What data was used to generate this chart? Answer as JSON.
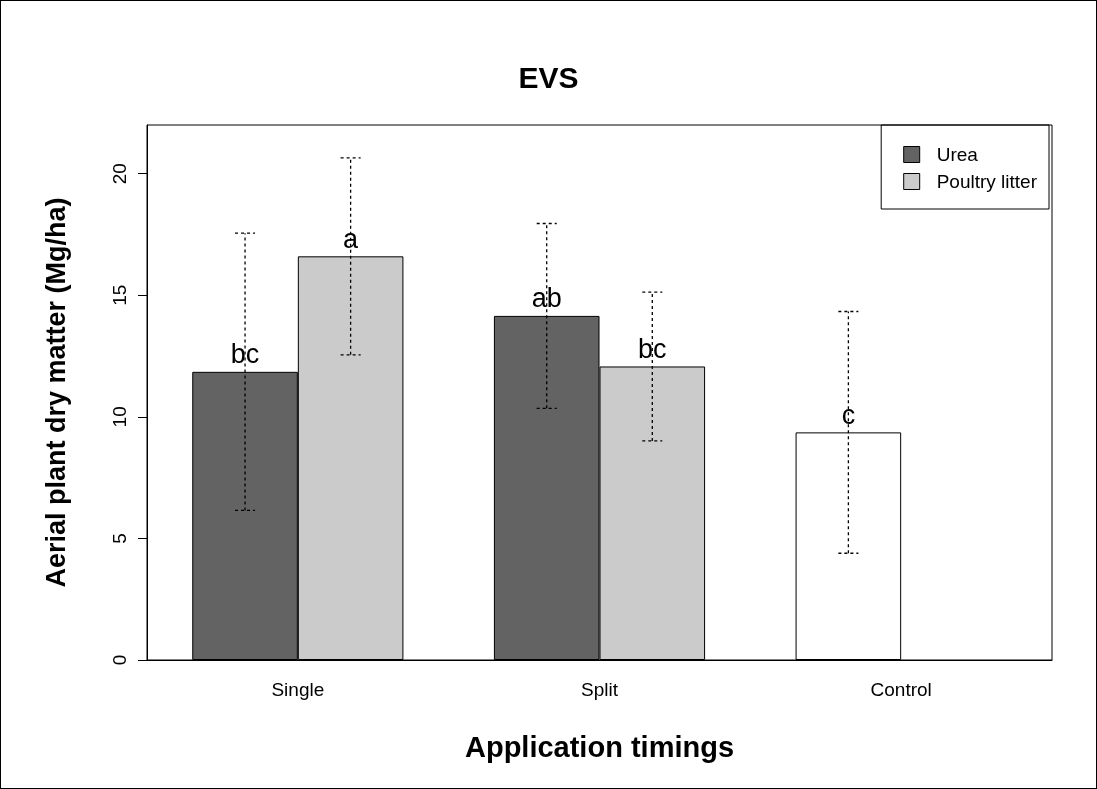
{
  "chart_data": {
    "type": "bar",
    "title": "EVS",
    "xlabel": "Application timings",
    "ylabel": "Aerial plant dry matter (Mg/ha)",
    "categories": [
      "Single",
      "Split",
      "Control"
    ],
    "series": [
      {
        "name": "Urea",
        "color": "#636363",
        "colors": [
          "#636363",
          "#636363",
          "#ffffff"
        ],
        "values": [
          11.85,
          14.15,
          9.36
        ],
        "errors": [
          5.7,
          3.8,
          4.97
        ],
        "value_labels": [
          "bc",
          "ab",
          "c"
        ]
      },
      {
        "name": "Poultry litter",
        "color": "#cbcbcb",
        "values": [
          16.6,
          12.07,
          null
        ],
        "errors": [
          4.05,
          3.06,
          null
        ],
        "value_labels": [
          "a",
          "bc",
          null
        ]
      }
    ],
    "ylim": [
      0,
      22
    ],
    "yticks": [
      0,
      5,
      10,
      15,
      20
    ],
    "grid": false,
    "legend": "top right"
  }
}
